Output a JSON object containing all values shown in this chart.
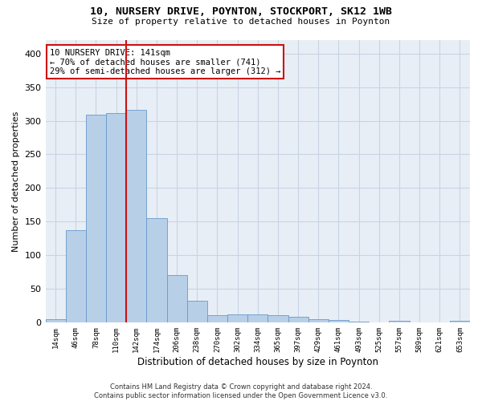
{
  "title_line1": "10, NURSERY DRIVE, POYNTON, STOCKPORT, SK12 1WB",
  "title_line2": "Size of property relative to detached houses in Poynton",
  "xlabel": "Distribution of detached houses by size in Poynton",
  "ylabel": "Number of detached properties",
  "bin_labels": [
    "14sqm",
    "46sqm",
    "78sqm",
    "110sqm",
    "142sqm",
    "174sqm",
    "206sqm",
    "238sqm",
    "270sqm",
    "302sqm",
    "334sqm",
    "365sqm",
    "397sqm",
    "429sqm",
    "461sqm",
    "493sqm",
    "525sqm",
    "557sqm",
    "589sqm",
    "621sqm",
    "653sqm"
  ],
  "bar_heights": [
    4,
    137,
    309,
    311,
    316,
    155,
    70,
    32,
    10,
    12,
    12,
    10,
    8,
    4,
    3,
    1,
    0,
    2,
    0,
    0,
    2
  ],
  "bar_color": "#b8cfe8",
  "bar_edge_color": "#6699cc",
  "grid_color": "#c8d4e4",
  "background_color": "#e8eef6",
  "vline_color": "#cc1111",
  "annotation_text": "10 NURSERY DRIVE: 141sqm\n← 70% of detached houses are smaller (741)\n29% of semi-detached houses are larger (312) →",
  "annotation_box_color": "#ffffff",
  "annotation_box_edge": "#cc1111",
  "ylim": [
    0,
    420
  ],
  "yticks": [
    0,
    50,
    100,
    150,
    200,
    250,
    300,
    350,
    400
  ],
  "footer_line1": "Contains HM Land Registry data © Crown copyright and database right 2024.",
  "footer_line2": "Contains public sector information licensed under the Open Government Licence v3.0."
}
